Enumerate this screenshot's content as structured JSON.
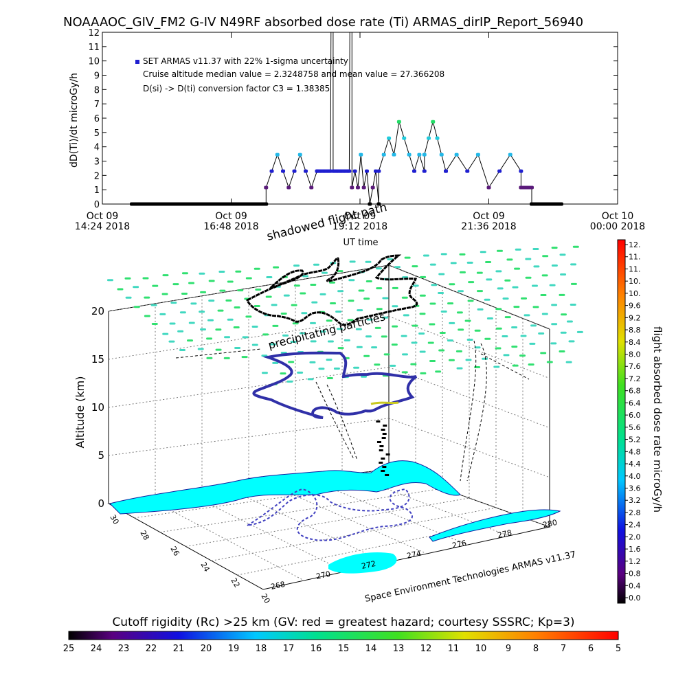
{
  "title": "NOAAAOC_GIV_FM2 G-IV   N49RF  absorbed dose rate (Ti) ARMAS_dirIP_Report_56940",
  "chart_data": [
    {
      "type": "scatter",
      "ylabel": "dD(Ti)/dt microGy/h",
      "xlabel": "UT time",
      "ylim": [
        0,
        12
      ],
      "yticks": [
        "0",
        "1",
        "2",
        "3",
        "4",
        "5",
        "6",
        "7",
        "8",
        "9",
        "10",
        "11",
        "12"
      ],
      "xticks": [
        {
          "line1": "Oct 09",
          "line2": "14:24 2018",
          "hour": 14.4
        },
        {
          "line1": "Oct 09",
          "line2": "16:48 2018",
          "hour": 16.8
        },
        {
          "line1": "Oct 09",
          "line2": "19:12 2018",
          "hour": 19.2
        },
        {
          "line1": "Oct 09",
          "line2": "21:36 2018",
          "hour": 21.6
        },
        {
          "line1": "Oct 10",
          "line2": "00:00 2018",
          "hour": 24.0
        }
      ],
      "xlim_hours": [
        14.4,
        24.0
      ],
      "legend": {
        "marker_label": "SET ARMAS v11.37 with 22% 1-sigma uncertainty",
        "line2": "Cruise altitude median value = 2.3248758 and mean value = 27.366208",
        "line3": "D(si) -> D(ti) conversion factor C3 = 1.38385"
      },
      "series": [
        {
          "segments": [
            {
              "from": 14.95,
              "to": 17.45,
              "value": 0
            },
            {
              "from": 17.45,
              "to": 18.4,
              "pattern": [
                1.15,
                2.3,
                3.45,
                2.3,
                1.15,
                2.3,
                3.45,
                2.3,
                1.15,
                2.3
              ]
            },
            {
              "from": 18.4,
              "to": 18.65,
              "value": 2.3
            },
            {
              "from": 18.66,
              "to": 18.7,
              "value": 12.5
            },
            {
              "from": 18.7,
              "to": 19.0,
              "value": 2.3
            },
            {
              "from": 19.01,
              "to": 19.05,
              "value": 12.5
            },
            {
              "from": 19.05,
              "to": 19.55,
              "pattern": [
                1.15,
                2.3,
                1.15,
                3.45,
                1.15,
                2.3,
                0,
                1.15,
                2.3,
                0
              ]
            },
            {
              "from": 19.55,
              "to": 20.4,
              "pattern": [
                2.3,
                3.45,
                4.6,
                3.45,
                5.75,
                4.6,
                3.45,
                2.3,
                3.45,
                2.3
              ]
            },
            {
              "from": 20.4,
              "to": 20.8,
              "pattern": [
                3.45,
                4.6,
                5.75,
                4.6,
                3.45,
                2.3
              ]
            },
            {
              "from": 20.8,
              "to": 22.2,
              "pattern": [
                2.3,
                3.45,
                2.3,
                3.45,
                1.15,
                2.3,
                3.45,
                2.3
              ]
            },
            {
              "from": 22.2,
              "to": 22.4,
              "value": 1.15
            },
            {
              "from": 22.4,
              "to": 22.95,
              "value": 0
            }
          ]
        }
      ]
    },
    {
      "type": "scatter3d",
      "zlabel": "Altitude (km)",
      "zticks": [
        "0",
        "5",
        "10",
        "15",
        "20"
      ],
      "lat_ticks": [
        "30",
        "28",
        "26",
        "24",
        "22",
        "20"
      ],
      "lon_ticks": [
        "268",
        "270",
        "272",
        "274",
        "276",
        "278",
        "280"
      ],
      "annotations": [
        "shadowed flight path",
        "precipitating particles"
      ],
      "credit": "Space Environment Technologies ARMAS v11.37",
      "colorbar_label": "flight absorbed dose rate microGy/h",
      "colorbar_ticks": [
        "12.",
        "11.",
        "11.",
        "10.",
        "10.",
        "9.6",
        "9.2",
        "8.8",
        "8.4",
        "8.0",
        "7.6",
        "7.2",
        "6.8",
        "6.4",
        "6.0",
        "5.6",
        "5.2",
        "4.8",
        "4.4",
        "4.0",
        "3.6",
        "3.2",
        "2.8",
        "2.4",
        "2.0",
        "1.6",
        "1.2",
        "0.8",
        "0.4",
        "0.0"
      ]
    }
  ],
  "bottom_bar": {
    "title": "Cutoff rigidity (Rc) >25 km (GV: red = greatest hazard; courtesy SSSRC; Kp=3)",
    "ticks": [
      "25",
      "24",
      "23",
      "22",
      "21",
      "20",
      "19",
      "18",
      "17",
      "16",
      "15",
      "14",
      "13",
      "12",
      "11",
      "10",
      "9",
      "8",
      "7",
      "6",
      "5"
    ]
  },
  "colors": {
    "marker_blue": "#1f1fd0",
    "marker_purple": "#5a1a7a",
    "marker_cyan": "#22b8e8",
    "marker_green": "#22dd66",
    "land": "#00ffff",
    "grid": "#888888"
  }
}
